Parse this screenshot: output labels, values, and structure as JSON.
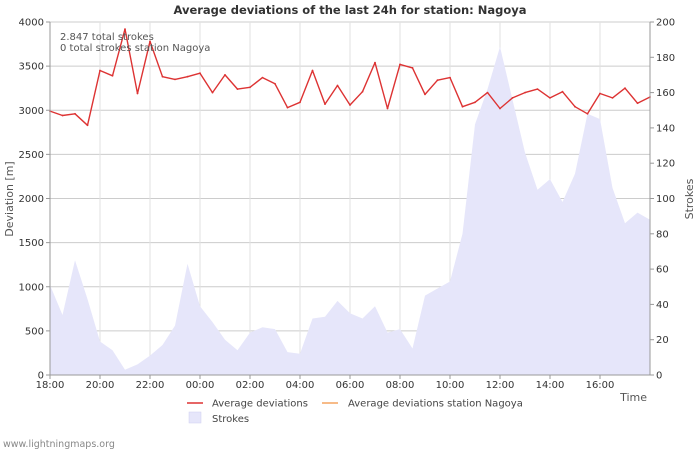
{
  "chart_data": {
    "type": "line",
    "title": "Average deviations of the last 24h for station: Nagoya",
    "xlabel": "Time",
    "ylabel_left": "Deviation  [m]",
    "ylabel_right": "Strokes",
    "x_range": [
      18,
      42
    ],
    "ylim_left": [
      0,
      4000
    ],
    "ylim_right": [
      0,
      200
    ],
    "grid": true,
    "x_ticks": [
      {
        "x": 18,
        "label": "18:00"
      },
      {
        "x": 20,
        "label": "20:00"
      },
      {
        "x": 22,
        "label": "22:00"
      },
      {
        "x": 24,
        "label": "00:00"
      },
      {
        "x": 26,
        "label": "02:00"
      },
      {
        "x": 28,
        "label": "04:00"
      },
      {
        "x": 30,
        "label": "06:00"
      },
      {
        "x": 32,
        "label": "08:00"
      },
      {
        "x": 34,
        "label": "10:00"
      },
      {
        "x": 36,
        "label": "12:00"
      },
      {
        "x": 38,
        "label": "14:00"
      },
      {
        "x": 40,
        "label": "16:00"
      }
    ],
    "y_left_ticks": [
      0,
      500,
      1000,
      1500,
      2000,
      2500,
      3000,
      3500,
      4000
    ],
    "y_right_ticks": [
      0,
      20,
      40,
      60,
      80,
      100,
      120,
      140,
      160,
      180,
      200
    ],
    "annotations": [
      "2.847 total strokes",
      "0 total strokes station Nagoya"
    ],
    "legend": [
      {
        "name": "Average deviations",
        "color": "#dd3333"
      },
      {
        "name": "Average deviations station Nagoya",
        "color": "#f4a460"
      },
      {
        "name": "Strokes",
        "color": "#e6e6fa"
      }
    ],
    "series": [
      {
        "name": "Average deviations",
        "axis": "left",
        "color": "#dd3333",
        "x": [
          18.0,
          18.5,
          19.0,
          19.5,
          20.0,
          20.5,
          21.0,
          21.5,
          22.0,
          22.5,
          23.0,
          23.5,
          24.0,
          24.5,
          25.0,
          25.5,
          26.0,
          26.5,
          27.0,
          27.5,
          28.0,
          28.5,
          29.0,
          29.5,
          30.0,
          30.5,
          31.0,
          31.5,
          32.0,
          32.5,
          33.0,
          33.5,
          34.0,
          34.5,
          35.0,
          35.5,
          36.0,
          36.5,
          37.0,
          37.5,
          38.0,
          38.5,
          39.0,
          39.5,
          40.0,
          40.5,
          41.0,
          41.5,
          42.0
        ],
        "values": [
          2990,
          2940,
          2960,
          2830,
          3450,
          3390,
          3920,
          3190,
          3780,
          3380,
          3350,
          3380,
          3420,
          3200,
          3400,
          3240,
          3260,
          3370,
          3300,
          3030,
          3090,
          3450,
          3070,
          3280,
          3060,
          3210,
          3540,
          3020,
          3520,
          3480,
          3180,
          3340,
          3370,
          3040,
          3090,
          3200,
          3020,
          3140,
          3200,
          3240,
          3140,
          3210,
          3040,
          2960,
          3190,
          3140,
          3250,
          3080,
          3150
        ]
      },
      {
        "name": "Average deviations station Nagoya",
        "axis": "left",
        "color": "#f4a460",
        "x": [],
        "values": []
      },
      {
        "name": "Strokes",
        "axis": "right",
        "color": "#e6e6fa",
        "x": [
          18.0,
          18.5,
          19.0,
          19.5,
          20.0,
          20.5,
          21.0,
          21.5,
          22.0,
          22.5,
          23.0,
          23.5,
          24.0,
          24.5,
          25.0,
          25.5,
          26.0,
          26.5,
          27.0,
          27.5,
          28.0,
          28.5,
          29.0,
          29.5,
          30.0,
          30.5,
          31.0,
          31.5,
          32.0,
          32.5,
          33.0,
          33.5,
          34.0,
          34.5,
          35.0,
          35.5,
          36.0,
          36.5,
          37.0,
          37.5,
          38.0,
          38.5,
          39.0,
          39.5,
          40.0,
          40.5,
          41.0,
          41.5,
          42.0
        ],
        "values": [
          51,
          34,
          65,
          43,
          19,
          14,
          3,
          6,
          11,
          17,
          28,
          63,
          39,
          30,
          20,
          14,
          24,
          27,
          26,
          13,
          12,
          32,
          33,
          42,
          35,
          32,
          39,
          24,
          26,
          15,
          45,
          49,
          53,
          80,
          142,
          162,
          186,
          156,
          126,
          105,
          111,
          98,
          114,
          148,
          145,
          106,
          86,
          92,
          88
        ]
      }
    ]
  },
  "footer": {
    "credit": "www.lightningmaps.org"
  }
}
